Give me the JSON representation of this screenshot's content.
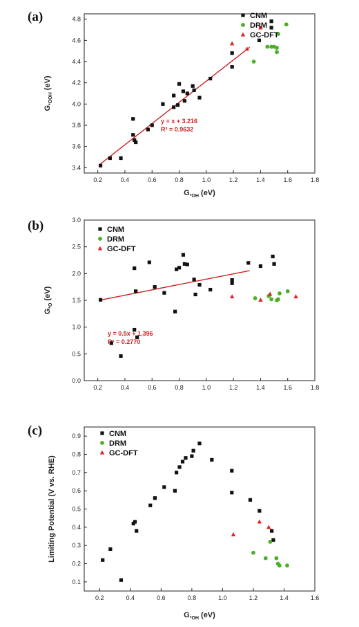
{
  "colors": {
    "cnm": "#111111",
    "drm": "#4caf28",
    "gcdft": "#e02424",
    "fit": "#cc2222",
    "axis": "#222222"
  },
  "chart_data": [
    {
      "panel": "(a)",
      "type": "scatter",
      "xlabel": "G",
      "xlabel_sub": "*OH",
      "xlabel_unit": " (eV)",
      "ylabel": "G",
      "ylabel_sub": "*OOH",
      "ylabel_unit": " (eV)",
      "xlim": [
        0.1,
        1.8
      ],
      "ylim": [
        3.35,
        4.85
      ],
      "xticks": [
        "0.2",
        "0.4",
        "0.6",
        "0.8",
        "1.0",
        "1.2",
        "1.4",
        "1.6",
        "1.8"
      ],
      "yticks": [
        "3.4",
        "3.6",
        "3.8",
        "4.0",
        "4.2",
        "4.4",
        "4.6",
        "4.8"
      ],
      "legend": [
        "CNM",
        "DRM",
        "GC-DFT"
      ],
      "legend_position": "top-right",
      "series": [
        {
          "name": "CNM",
          "marker": "square",
          "points": [
            [
              0.22,
              3.42
            ],
            [
              0.29,
              3.49
            ],
            [
              0.37,
              3.49
            ],
            [
              0.46,
              3.71
            ],
            [
              0.46,
              3.86
            ],
            [
              0.47,
              3.66
            ],
            [
              0.48,
              3.64
            ],
            [
              0.57,
              3.76
            ],
            [
              0.6,
              3.8
            ],
            [
              0.68,
              4.0
            ],
            [
              0.76,
              3.97
            ],
            [
              0.76,
              4.08
            ],
            [
              0.79,
              3.99
            ],
            [
              0.8,
              4.19
            ],
            [
              0.83,
              4.12
            ],
            [
              0.84,
              4.03
            ],
            [
              0.86,
              4.1
            ],
            [
              0.9,
              4.17
            ],
            [
              0.91,
              4.13
            ],
            [
              0.95,
              4.06
            ],
            [
              1.03,
              4.24
            ],
            [
              1.19,
              4.35
            ],
            [
              1.19,
              4.48
            ],
            [
              1.39,
              4.6
            ],
            [
              1.48,
              4.72
            ],
            [
              1.48,
              4.78
            ]
          ]
        },
        {
          "name": "DRM",
          "marker": "circle",
          "points": [
            [
              1.35,
              4.4
            ],
            [
              1.45,
              4.54
            ],
            [
              1.48,
              4.54
            ],
            [
              1.5,
              4.54
            ],
            [
              1.52,
              4.49
            ],
            [
              1.52,
              4.53
            ],
            [
              1.53,
              4.66
            ],
            [
              1.59,
              4.75
            ]
          ]
        },
        {
          "name": "GC-DFT",
          "marker": "triangle",
          "points": [
            [
              1.19,
              4.57
            ],
            [
              1.3,
              4.52
            ],
            [
              1.4,
              4.72
            ]
          ]
        }
      ],
      "fit": {
        "x": [
          0.22,
          1.32
        ],
        "equation": "y = x + 3.216",
        "r2": "R² = 0.9632"
      }
    },
    {
      "panel": "(b)",
      "type": "scatter",
      "xlabel": "",
      "ylabel": "G",
      "ylabel_sub": "*O",
      "ylabel_unit": " (eV)",
      "xlim": [
        0.1,
        1.8
      ],
      "ylim": [
        0.0,
        3.0
      ],
      "xticks": [
        "0.2",
        "0.4",
        "0.6",
        "0.8",
        "1.0",
        "1.2",
        "1.4",
        "1.6",
        "1.8"
      ],
      "yticks": [
        "0.0",
        "0.5",
        "1.0",
        "1.5",
        "2.0",
        "2.5",
        "3.0"
      ],
      "legend": [
        "CNM",
        "DRM",
        "GC-DFT"
      ],
      "legend_position": "top-left",
      "series": [
        {
          "name": "CNM",
          "marker": "square",
          "points": [
            [
              0.22,
              1.51
            ],
            [
              0.3,
              0.7
            ],
            [
              0.37,
              0.46
            ],
            [
              0.47,
              0.95
            ],
            [
              0.47,
              2.1
            ],
            [
              0.48,
              1.67
            ],
            [
              0.49,
              0.81
            ],
            [
              0.58,
              2.21
            ],
            [
              0.62,
              1.75
            ],
            [
              0.69,
              1.64
            ],
            [
              0.77,
              1.29
            ],
            [
              0.78,
              2.08
            ],
            [
              0.8,
              2.11
            ],
            [
              0.83,
              2.35
            ],
            [
              0.84,
              2.18
            ],
            [
              0.86,
              2.17
            ],
            [
              0.91,
              1.89
            ],
            [
              0.92,
              1.61
            ],
            [
              0.95,
              1.79
            ],
            [
              1.03,
              1.7
            ],
            [
              1.19,
              1.82
            ],
            [
              1.19,
              1.88
            ],
            [
              1.31,
              2.2
            ],
            [
              1.4,
              2.14
            ],
            [
              1.49,
              2.32
            ],
            [
              1.5,
              2.18
            ]
          ]
        },
        {
          "name": "DRM",
          "marker": "circle",
          "points": [
            [
              1.36,
              1.54
            ],
            [
              1.46,
              1.58
            ],
            [
              1.48,
              1.52
            ],
            [
              1.52,
              1.5
            ],
            [
              1.53,
              1.52
            ],
            [
              1.54,
              1.63
            ],
            [
              1.6,
              1.67
            ]
          ]
        },
        {
          "name": "GC-DFT",
          "marker": "triangle",
          "points": [
            [
              1.19,
              1.57
            ],
            [
              1.4,
              1.51
            ],
            [
              1.47,
              1.62
            ],
            [
              1.66,
              1.57
            ]
          ]
        }
      ],
      "fit": {
        "x": [
          0.22,
          1.32
        ],
        "equation": "y = 0.5x + 1.396",
        "r2": "R² = 0.2770"
      }
    },
    {
      "panel": "(c)",
      "type": "scatter",
      "xlabel": "G",
      "xlabel_sub": "*OH",
      "xlabel_unit": " (eV)",
      "ylabel": "Limiting Potential (V vs. RHE)",
      "xlim": [
        0.1,
        1.6
      ],
      "ylim": [
        0.05,
        0.95
      ],
      "xticks": [
        "0.2",
        "0.4",
        "0.6",
        "0.8",
        "1.0",
        "1.2",
        "1.4",
        "1.6"
      ],
      "yticks": [
        "0.1",
        "0.2",
        "0.3",
        "0.4",
        "0.5",
        "0.6",
        "0.7",
        "0.8",
        "0.9"
      ],
      "legend": [
        "CNM",
        "DRM",
        "GC-DFT"
      ],
      "legend_position": "top-left",
      "series": [
        {
          "name": "CNM",
          "marker": "square",
          "points": [
            [
              0.22,
              0.22
            ],
            [
              0.27,
              0.28
            ],
            [
              0.34,
              0.11
            ],
            [
              0.42,
              0.42
            ],
            [
              0.43,
              0.43
            ],
            [
              0.44,
              0.38
            ],
            [
              0.53,
              0.52
            ],
            [
              0.56,
              0.56
            ],
            [
              0.62,
              0.62
            ],
            [
              0.69,
              0.6
            ],
            [
              0.7,
              0.7
            ],
            [
              0.72,
              0.73
            ],
            [
              0.74,
              0.76
            ],
            [
              0.76,
              0.78
            ],
            [
              0.8,
              0.79
            ],
            [
              0.81,
              0.82
            ],
            [
              0.85,
              0.86
            ],
            [
              0.93,
              0.77
            ],
            [
              1.06,
              0.71
            ],
            [
              1.06,
              0.59
            ],
            [
              1.18,
              0.55
            ],
            [
              1.24,
              0.49
            ],
            [
              1.32,
              0.38
            ],
            [
              1.33,
              0.33
            ]
          ]
        },
        {
          "name": "DRM",
          "marker": "circle",
          "points": [
            [
              1.2,
              0.26
            ],
            [
              1.28,
              0.23
            ],
            [
              1.31,
              0.32
            ],
            [
              1.35,
              0.23
            ],
            [
              1.36,
              0.2
            ],
            [
              1.37,
              0.19
            ],
            [
              1.42,
              0.19
            ]
          ]
        },
        {
          "name": "GC-DFT",
          "marker": "triangle",
          "points": [
            [
              1.07,
              0.36
            ],
            [
              1.24,
              0.43
            ],
            [
              1.3,
              0.4
            ]
          ]
        }
      ]
    }
  ]
}
